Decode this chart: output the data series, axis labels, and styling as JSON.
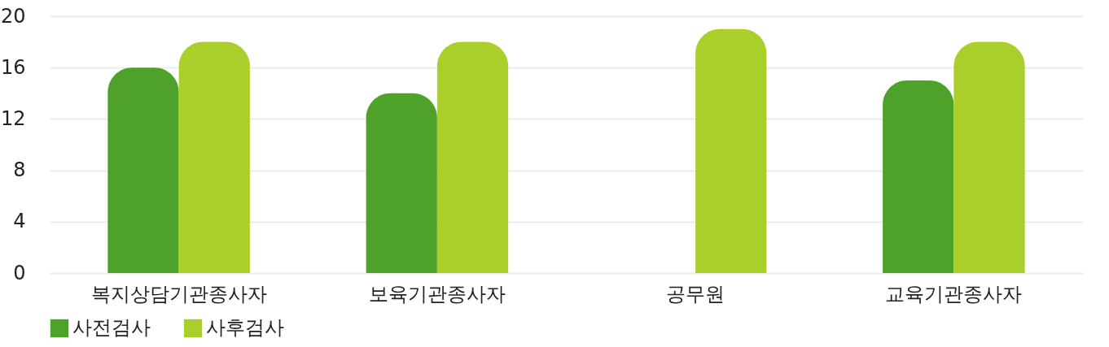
{
  "chart_data": {
    "type": "bar",
    "categories": [
      "복지상담기관종사자",
      "보육기관종사자",
      "공무원",
      "교육기관종사자"
    ],
    "series": [
      {
        "name": "사전검사",
        "color": "#4ea229",
        "values": [
          16,
          14,
          null,
          15
        ]
      },
      {
        "name": "사후검사",
        "color": "#aacf2b",
        "values": [
          18,
          18,
          19,
          18
        ]
      }
    ],
    "ylim": [
      0,
      20
    ],
    "yticks": [
      0,
      4,
      8,
      12,
      16,
      20
    ],
    "grid": "y",
    "legend": "bottom"
  }
}
